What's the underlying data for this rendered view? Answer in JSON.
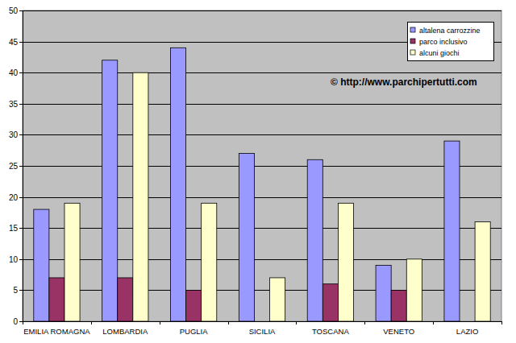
{
  "chart_data": {
    "type": "bar",
    "categories": [
      "EMILIA ROMAGNA",
      "LOMBARDIA",
      "PUGLIA",
      "SICILIA",
      "TOSCANA",
      "VENETO",
      "LAZIO"
    ],
    "series": [
      {
        "name": "altalena carrozzine",
        "color": "#9999ff",
        "values": [
          18,
          42,
          44,
          27,
          26,
          9,
          29
        ]
      },
      {
        "name": "parco inclusivo",
        "color": "#993366",
        "values": [
          7,
          7,
          5,
          0,
          6,
          5,
          0
        ]
      },
      {
        "name": "alcuni giochi",
        "color": "#ffffcc",
        "values": [
          19,
          40,
          19,
          7,
          19,
          10,
          16
        ]
      }
    ],
    "ylim": [
      0,
      50
    ],
    "yticks": [
      0,
      5,
      10,
      15,
      20,
      25,
      30,
      35,
      40,
      45,
      50
    ],
    "grid": true,
    "legend": "top-right",
    "annotation": "© http://www.parchipertutti.com"
  }
}
